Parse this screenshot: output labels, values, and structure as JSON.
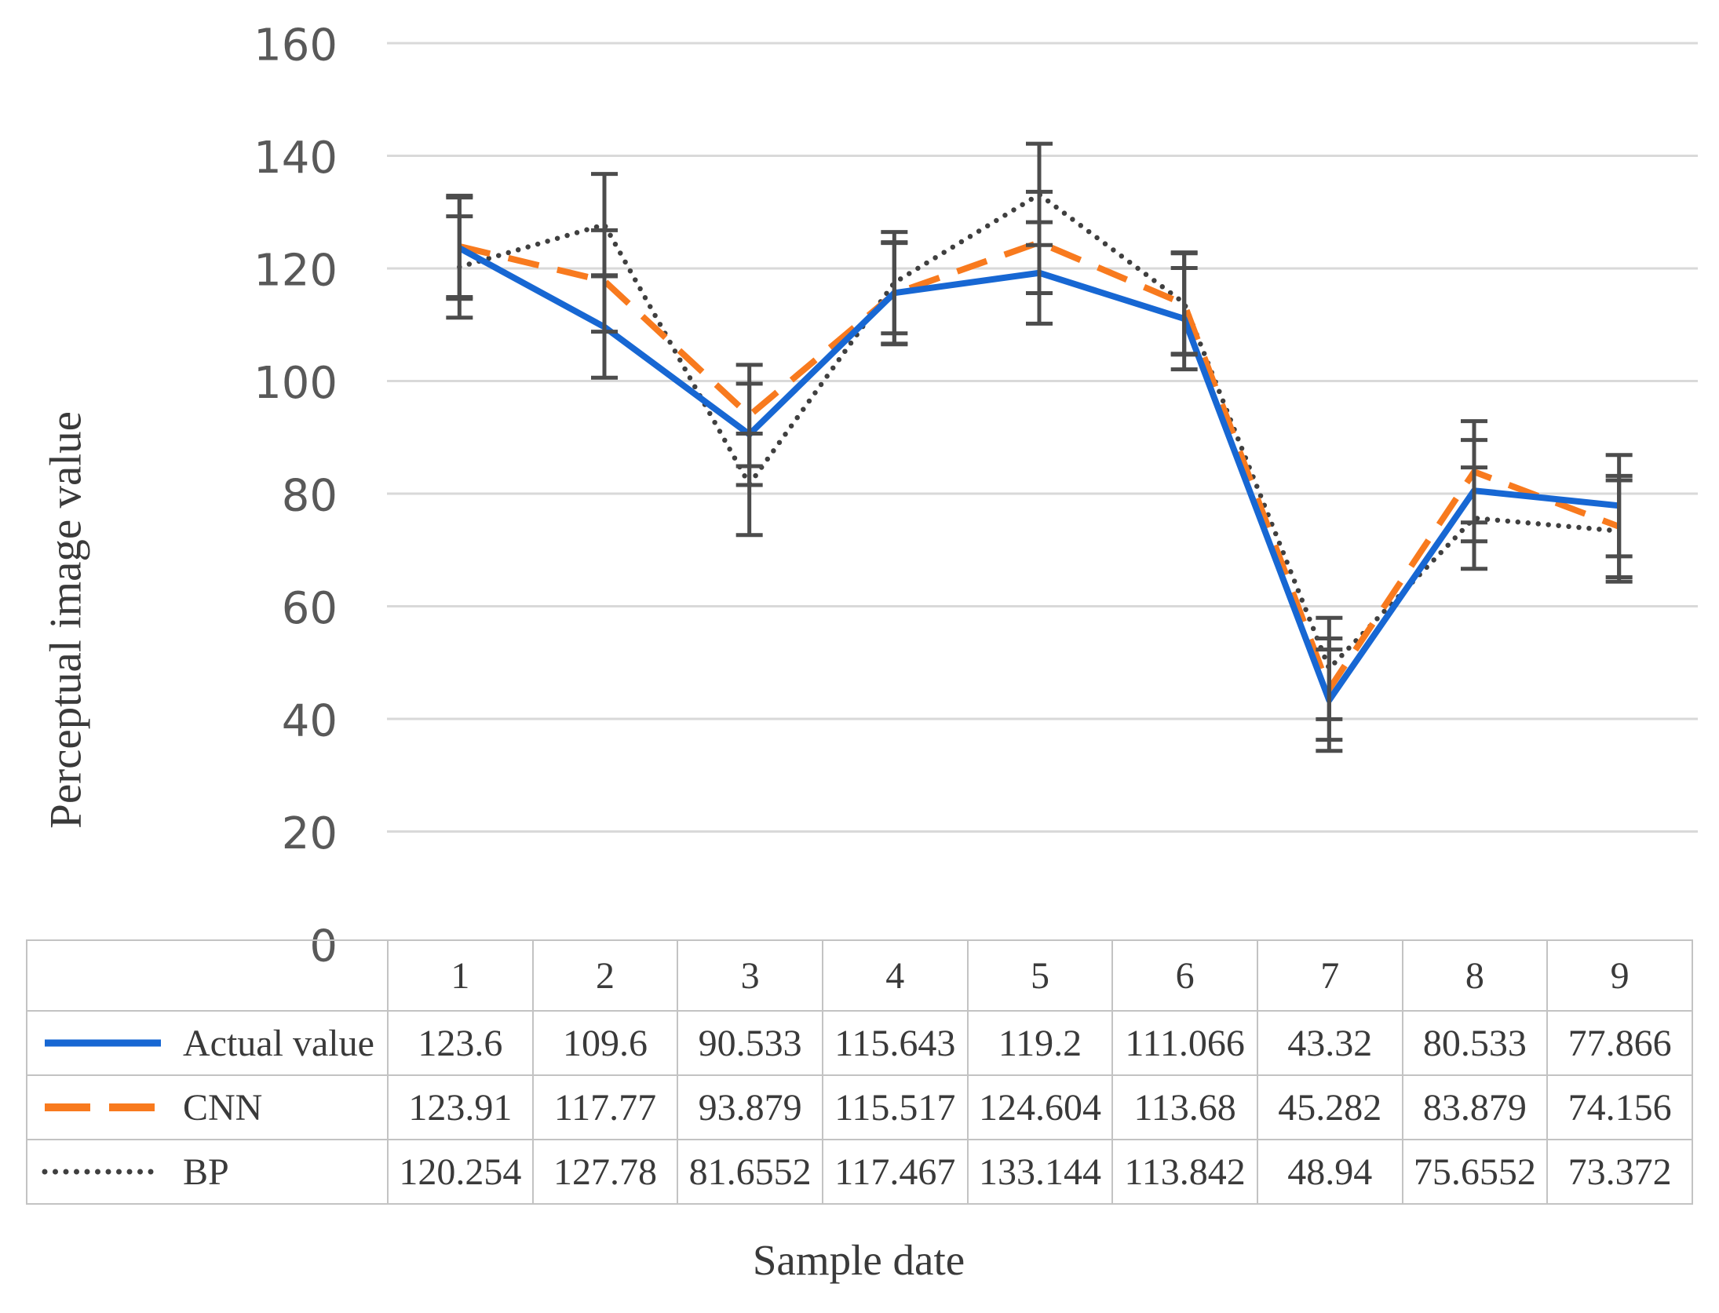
{
  "figure": {
    "x_axis_title": "Sample date",
    "y_axis_title": "Perceptual image value"
  },
  "chart_data": {
    "type": "line",
    "title": "",
    "xlabel": "Sample date",
    "ylabel": "Perceptual image value",
    "categories": [
      "1",
      "2",
      "3",
      "4",
      "5",
      "6",
      "7",
      "8",
      "9"
    ],
    "series": [
      {
        "name": "Actual value",
        "style": "solid",
        "color": "#1767D3",
        "values": [
          123.6,
          109.6,
          90.533,
          115.643,
          119.2,
          111.066,
          43.32,
          80.533,
          77.866
        ]
      },
      {
        "name": "CNN",
        "style": "dashed",
        "color": "#F87A1E",
        "values": [
          123.91,
          117.77,
          93.879,
          115.517,
          124.604,
          113.68,
          45.282,
          83.879,
          74.156
        ]
      },
      {
        "name": "BP",
        "style": "dotted",
        "color": "#3F3F3F",
        "values": [
          120.254,
          127.78,
          81.6552,
          117.467,
          133.144,
          113.842,
          48.94,
          75.6552,
          73.372
        ]
      }
    ],
    "error_bars": {
      "plus_minus": 9,
      "color": "#4C4C4C"
    },
    "ylim": [
      0,
      160
    ],
    "yticks": [
      0,
      20,
      40,
      60,
      80,
      100,
      120,
      140,
      160
    ],
    "grid": true,
    "grid_color": "#D9D9D9",
    "axis_text_color": "#595959",
    "legend_position": "table-left-column"
  }
}
